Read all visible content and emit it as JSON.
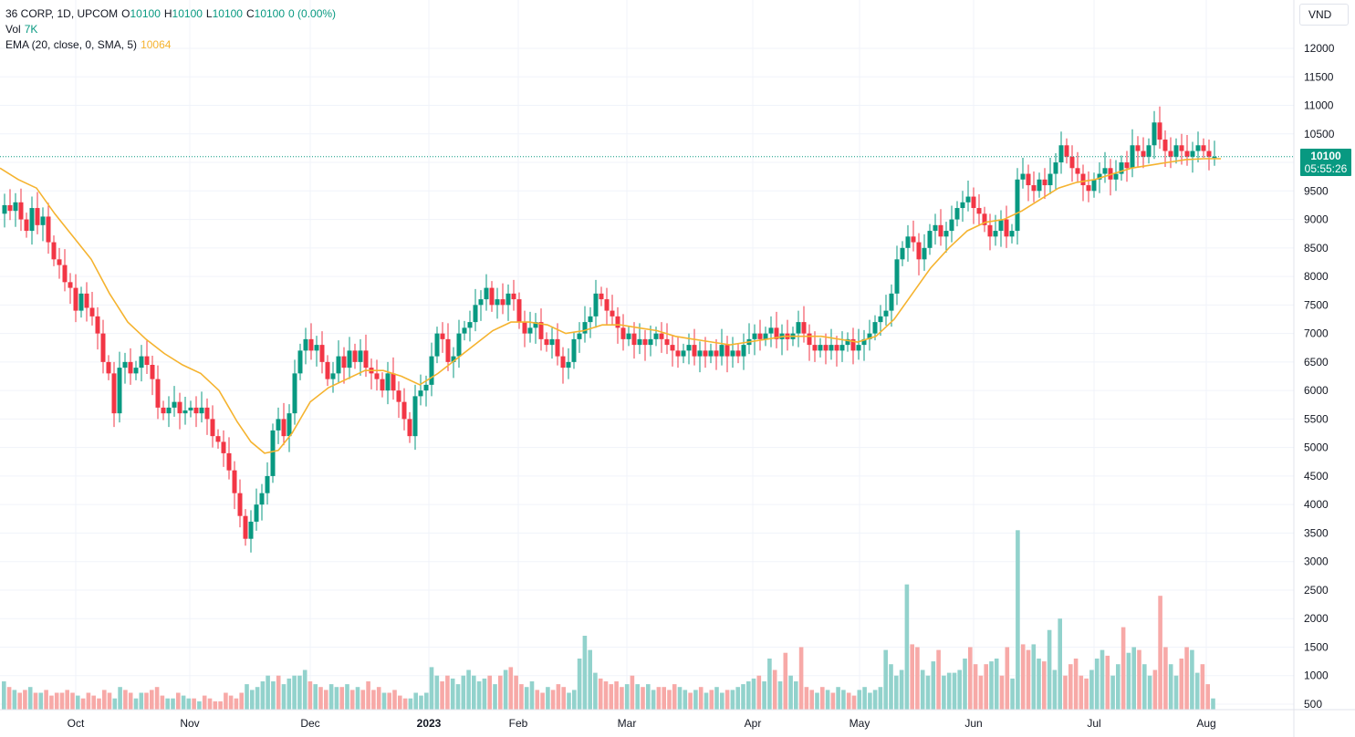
{
  "legend": {
    "symbol": "36 CORP, 1D, UPCOM",
    "open_label": "O",
    "open": "10100",
    "high_label": "H",
    "high": "10100",
    "low_label": "L",
    "low": "10100",
    "close_label": "C",
    "close": "10100",
    "change": "0 (0.00%)",
    "vol_label": "Vol",
    "vol_value": "7K",
    "ema_label": "EMA (20, close, 0, SMA, 5)",
    "ema_value": "10064"
  },
  "currency": "VND",
  "last_price": {
    "value": "10100",
    "countdown": "05:55:26"
  },
  "colors": {
    "up": "#089981",
    "down": "#f23645",
    "vol_up": "#92d2cc",
    "vol_down": "#f7a9a7",
    "ema": "#f5b32f",
    "grid": "#f0f3fa"
  },
  "chart_data": {
    "type": "candlestick",
    "price_axis": {
      "ticks": [
        500,
        1000,
        1500,
        2000,
        2500,
        3000,
        3500,
        4000,
        4500,
        5000,
        5500,
        6000,
        6500,
        7000,
        7500,
        8000,
        8500,
        9000,
        9500,
        10000,
        10500,
        11000,
        11500,
        12000
      ],
      "range": [
        500,
        12000
      ]
    },
    "time_axis": {
      "labels": [
        "Oct",
        "Nov",
        "Dec",
        "2023",
        "Feb",
        "Mar",
        "Apr",
        "May",
        "Jun",
        "Jul",
        "Aug"
      ],
      "bold": [
        "2023"
      ]
    },
    "volume_axis_note": "volume shares the lower area of the price axis",
    "price_path": [
      [
        0,
        9100
      ],
      [
        6,
        9250
      ],
      [
        12,
        9150
      ],
      [
        18,
        9300
      ],
      [
        24,
        9000
      ],
      [
        30,
        8800
      ],
      [
        36,
        9200
      ],
      [
        42,
        8900
      ],
      [
        48,
        9050
      ],
      [
        54,
        8600
      ],
      [
        60,
        8300
      ],
      [
        66,
        8200
      ],
      [
        72,
        7900
      ],
      [
        78,
        7800
      ],
      [
        84,
        7400
      ],
      [
        90,
        7700
      ],
      [
        96,
        7450
      ],
      [
        102,
        7300
      ],
      [
        108,
        7000
      ],
      [
        114,
        6500
      ],
      [
        120,
        6300
      ],
      [
        126,
        5600
      ],
      [
        132,
        6400
      ],
      [
        138,
        6500
      ],
      [
        144,
        6300
      ],
      [
        150,
        6400
      ],
      [
        156,
        6600
      ],
      [
        162,
        6450
      ],
      [
        168,
        6200
      ],
      [
        174,
        5700
      ],
      [
        180,
        5600
      ],
      [
        186,
        5700
      ],
      [
        192,
        5800
      ],
      [
        198,
        5600
      ],
      [
        204,
        5650
      ],
      [
        210,
        5700
      ],
      [
        216,
        5600
      ],
      [
        222,
        5700
      ],
      [
        228,
        5500
      ],
      [
        234,
        5200
      ],
      [
        240,
        5100
      ],
      [
        246,
        4900
      ],
      [
        252,
        4600
      ],
      [
        258,
        4200
      ],
      [
        264,
        3800
      ],
      [
        270,
        3400
      ],
      [
        276,
        3700
      ],
      [
        282,
        4000
      ],
      [
        288,
        4200
      ],
      [
        294,
        4500
      ],
      [
        300,
        5300
      ],
      [
        306,
        5500
      ],
      [
        312,
        5200
      ],
      [
        318,
        5600
      ],
      [
        324,
        6300
      ],
      [
        330,
        6700
      ],
      [
        336,
        6900
      ],
      [
        342,
        6700
      ],
      [
        348,
        6800
      ],
      [
        354,
        6500
      ],
      [
        360,
        6200
      ],
      [
        366,
        6300
      ],
      [
        372,
        6600
      ],
      [
        378,
        6400
      ],
      [
        384,
        6700
      ],
      [
        390,
        6500
      ],
      [
        396,
        6700
      ],
      [
        402,
        6400
      ],
      [
        408,
        6300
      ],
      [
        414,
        6200
      ],
      [
        420,
        6000
      ],
      [
        426,
        6300
      ],
      [
        432,
        6000
      ],
      [
        438,
        5800
      ],
      [
        444,
        5500
      ],
      [
        450,
        5200
      ],
      [
        456,
        5900
      ],
      [
        462,
        6000
      ],
      [
        468,
        6100
      ],
      [
        474,
        6600
      ],
      [
        480,
        7000
      ],
      [
        486,
        6900
      ],
      [
        492,
        6500
      ],
      [
        498,
        6600
      ],
      [
        504,
        7000
      ],
      [
        510,
        7100
      ],
      [
        516,
        7200
      ],
      [
        522,
        7500
      ],
      [
        528,
        7600
      ],
      [
        534,
        7800
      ],
      [
        540,
        7500
      ],
      [
        546,
        7600
      ],
      [
        552,
        7500
      ],
      [
        558,
        7700
      ],
      [
        564,
        7600
      ],
      [
        570,
        7200
      ],
      [
        576,
        7000
      ],
      [
        582,
        7100
      ],
      [
        588,
        7200
      ],
      [
        594,
        6900
      ],
      [
        600,
        6800
      ],
      [
        606,
        6900
      ],
      [
        612,
        6600
      ],
      [
        618,
        6400
      ],
      [
        624,
        6500
      ],
      [
        630,
        6900
      ],
      [
        636,
        7000
      ],
      [
        642,
        7200
      ],
      [
        648,
        7300
      ],
      [
        654,
        7700
      ],
      [
        660,
        7600
      ],
      [
        666,
        7400
      ],
      [
        672,
        7300
      ],
      [
        678,
        7100
      ],
      [
        684,
        6900
      ],
      [
        690,
        7000
      ],
      [
        696,
        6800
      ],
      [
        702,
        6900
      ],
      [
        708,
        6800
      ],
      [
        714,
        6900
      ],
      [
        720,
        7000
      ],
      [
        726,
        6900
      ],
      [
        732,
        6800
      ],
      [
        738,
        6700
      ],
      [
        744,
        6600
      ],
      [
        750,
        6700
      ],
      [
        756,
        6800
      ],
      [
        762,
        6600
      ],
      [
        768,
        6700
      ],
      [
        774,
        6600
      ],
      [
        780,
        6700
      ],
      [
        786,
        6600
      ],
      [
        792,
        6800
      ],
      [
        798,
        6600
      ],
      [
        804,
        6700
      ],
      [
        810,
        6600
      ],
      [
        816,
        6800
      ],
      [
        822,
        6900
      ],
      [
        828,
        7000
      ],
      [
        834,
        6900
      ],
      [
        840,
        7000
      ],
      [
        846,
        7100
      ],
      [
        852,
        6900
      ],
      [
        858,
        7000
      ],
      [
        864,
        6900
      ],
      [
        870,
        7000
      ],
      [
        876,
        7200
      ],
      [
        882,
        7000
      ],
      [
        888,
        6800
      ],
      [
        894,
        6700
      ],
      [
        900,
        6800
      ],
      [
        906,
        6700
      ],
      [
        912,
        6800
      ],
      [
        918,
        6700
      ],
      [
        924,
        6800
      ],
      [
        930,
        6900
      ],
      [
        936,
        6700
      ],
      [
        942,
        6800
      ],
      [
        948,
        6900
      ],
      [
        954,
        7000
      ],
      [
        960,
        7200
      ],
      [
        966,
        7300
      ],
      [
        972,
        7400
      ],
      [
        978,
        7700
      ],
      [
        984,
        8300
      ],
      [
        990,
        8500
      ],
      [
        996,
        8700
      ],
      [
        1002,
        8600
      ],
      [
        1008,
        8300
      ],
      [
        1014,
        8500
      ],
      [
        1020,
        8800
      ],
      [
        1026,
        8900
      ],
      [
        1032,
        8700
      ],
      [
        1038,
        8800
      ],
      [
        1044,
        9000
      ],
      [
        1050,
        9200
      ],
      [
        1056,
        9300
      ],
      [
        1062,
        9400
      ],
      [
        1068,
        9200
      ],
      [
        1074,
        9100
      ],
      [
        1080,
        8900
      ],
      [
        1086,
        8700
      ],
      [
        1092,
        8800
      ],
      [
        1098,
        9000
      ],
      [
        1104,
        8700
      ],
      [
        1110,
        8800
      ],
      [
        1116,
        9700
      ],
      [
        1122,
        9800
      ],
      [
        1128,
        9600
      ],
      [
        1134,
        9500
      ],
      [
        1140,
        9700
      ],
      [
        1146,
        9600
      ],
      [
        1152,
        9800
      ],
      [
        1158,
        10000
      ],
      [
        1164,
        10300
      ],
      [
        1170,
        10100
      ],
      [
        1176,
        9900
      ],
      [
        1182,
        9800
      ],
      [
        1188,
        9600
      ],
      [
        1194,
        9500
      ],
      [
        1200,
        9700
      ],
      [
        1206,
        9800
      ],
      [
        1212,
        9900
      ],
      [
        1218,
        9700
      ],
      [
        1224,
        9800
      ],
      [
        1230,
        10000
      ],
      [
        1236,
        9900
      ],
      [
        1242,
        10300
      ],
      [
        1248,
        10200
      ],
      [
        1254,
        10100
      ],
      [
        1260,
        10300
      ],
      [
        1266,
        10700
      ],
      [
        1272,
        10400
      ],
      [
        1278,
        10200
      ],
      [
        1284,
        10100
      ],
      [
        1290,
        10300
      ],
      [
        1296,
        10200
      ],
      [
        1302,
        10100
      ],
      [
        1308,
        10200
      ],
      [
        1314,
        10300
      ],
      [
        1320,
        10200
      ],
      [
        1326,
        10100
      ],
      [
        1332,
        10100
      ]
    ],
    "ema_path": [
      [
        0,
        9900
      ],
      [
        20,
        9700
      ],
      [
        40,
        9550
      ],
      [
        60,
        9100
      ],
      [
        80,
        8700
      ],
      [
        100,
        8300
      ],
      [
        120,
        7700
      ],
      [
        140,
        7200
      ],
      [
        160,
        6900
      ],
      [
        180,
        6650
      ],
      [
        200,
        6450
      ],
      [
        220,
        6300
      ],
      [
        240,
        6000
      ],
      [
        260,
        5450
      ],
      [
        275,
        5100
      ],
      [
        290,
        4900
      ],
      [
        305,
        4950
      ],
      [
        320,
        5250
      ],
      [
        340,
        5800
      ],
      [
        360,
        6050
      ],
      [
        380,
        6200
      ],
      [
        400,
        6350
      ],
      [
        420,
        6350
      ],
      [
        440,
        6250
      ],
      [
        460,
        6100
      ],
      [
        480,
        6300
      ],
      [
        500,
        6550
      ],
      [
        520,
        6800
      ],
      [
        540,
        7050
      ],
      [
        560,
        7200
      ],
      [
        580,
        7200
      ],
      [
        600,
        7150
      ],
      [
        620,
        7000
      ],
      [
        640,
        7050
      ],
      [
        660,
        7150
      ],
      [
        680,
        7150
      ],
      [
        700,
        7100
      ],
      [
        720,
        7050
      ],
      [
        740,
        6950
      ],
      [
        760,
        6900
      ],
      [
        780,
        6850
      ],
      [
        800,
        6800
      ],
      [
        820,
        6850
      ],
      [
        840,
        6900
      ],
      [
        860,
        6950
      ],
      [
        880,
        6950
      ],
      [
        900,
        6950
      ],
      [
        920,
        6900
      ],
      [
        940,
        6850
      ],
      [
        960,
        6950
      ],
      [
        980,
        7250
      ],
      [
        1000,
        7700
      ],
      [
        1020,
        8150
      ],
      [
        1040,
        8500
      ],
      [
        1060,
        8800
      ],
      [
        1080,
        8950
      ],
      [
        1100,
        9000
      ],
      [
        1120,
        9150
      ],
      [
        1140,
        9350
      ],
      [
        1160,
        9550
      ],
      [
        1180,
        9650
      ],
      [
        1200,
        9700
      ],
      [
        1220,
        9800
      ],
      [
        1240,
        9900
      ],
      [
        1260,
        9950
      ],
      [
        1280,
        10000
      ],
      [
        1300,
        10050
      ],
      [
        1320,
        10064
      ],
      [
        1338,
        10064
      ]
    ],
    "volume": {
      "bars_up_down_pattern": "alternating mixed",
      "values_k": [
        0.9,
        0.8,
        0.75,
        0.7,
        0.75,
        0.8,
        0.7,
        0.7,
        0.75,
        0.65,
        0.7,
        0.7,
        0.75,
        0.7,
        0.65,
        0.6,
        0.7,
        0.65,
        0.6,
        0.75,
        0.7,
        0.6,
        0.8,
        0.75,
        0.7,
        0.6,
        0.7,
        0.7,
        0.75,
        0.8,
        0.65,
        0.6,
        0.6,
        0.7,
        0.65,
        0.6,
        0.6,
        0.55,
        0.65,
        0.6,
        0.55,
        0.55,
        0.7,
        0.65,
        0.6,
        0.7,
        0.85,
        0.75,
        0.8,
        0.9,
        1.0,
        0.9,
        1.0,
        0.85,
        0.95,
        1.0,
        1.0,
        1.1,
        0.9,
        0.85,
        0.8,
        0.75,
        0.85,
        0.8,
        0.8,
        0.85,
        0.75,
        0.8,
        0.75,
        0.9,
        0.75,
        0.8,
        0.7,
        0.7,
        0.75,
        0.65,
        0.6,
        0.6,
        0.7,
        0.65,
        0.7,
        1.15,
        1.0,
        0.9,
        1.0,
        0.95,
        0.85,
        1.0,
        1.1,
        1.0,
        0.9,
        0.95,
        1.0,
        0.85,
        1.0,
        1.1,
        1.15,
        1.0,
        0.85,
        0.8,
        0.9,
        0.75,
        0.7,
        0.8,
        0.75,
        0.85,
        0.8,
        0.7,
        0.75,
        1.3,
        1.7,
        1.45,
        1.05,
        0.95,
        0.9,
        0.85,
        0.9,
        0.8,
        0.85,
        1.0,
        0.85,
        0.8,
        0.85,
        0.75,
        0.8,
        0.8,
        0.75,
        0.85,
        0.8,
        0.75,
        0.7,
        0.75,
        0.8,
        0.7,
        0.75,
        0.8,
        0.7,
        0.75,
        0.75,
        0.8,
        0.85,
        0.9,
        0.95,
        1.0,
        0.9,
        1.3,
        1.1,
        0.9,
        1.4,
        1.0,
        0.9,
        1.5,
        0.8,
        0.75,
        0.7,
        0.8,
        0.75,
        0.7,
        0.8,
        0.75,
        0.7,
        0.65,
        0.75,
        0.8,
        0.7,
        0.75,
        0.8,
        1.45,
        1.2,
        1.0,
        1.1,
        2.6,
        1.55,
        1.5,
        1.1,
        1.0,
        1.25,
        1.45,
        1.0,
        1.05,
        1.05,
        1.1,
        1.3,
        1.5,
        1.2,
        1.0,
        1.2,
        1.25,
        1.3,
        1.0,
        1.5,
        0.95,
        3.55,
        1.55,
        1.45,
        1.55,
        1.3,
        1.25,
        1.8,
        1.1,
        2.0,
        1.0,
        1.2,
        1.3,
        1.0,
        0.95,
        1.1,
        1.3,
        1.45,
        1.35,
        1.0,
        1.2,
        1.85,
        1.4,
        1.5,
        1.45,
        1.2,
        1.0,
        1.1,
        2.4,
        1.5,
        1.2,
        1.0,
        1.3,
        1.5,
        1.45,
        1.05,
        1.2,
        0.85,
        0.6
      ]
    }
  }
}
